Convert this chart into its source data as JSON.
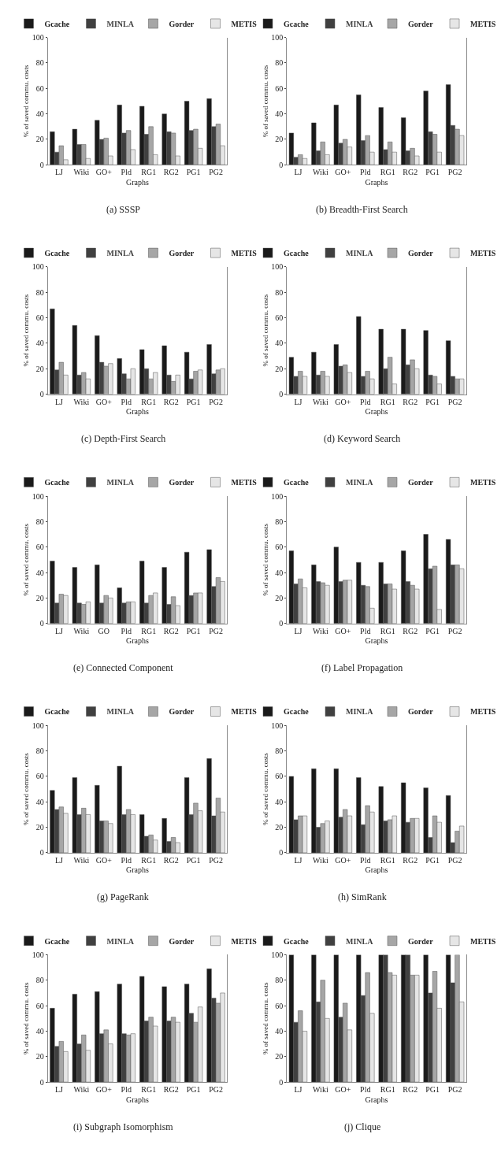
{
  "chart_data": [
    {
      "type": "bar",
      "title": "(a) SSSP",
      "xlabel": "Graphs",
      "ylabel": "% of saved commu. costs",
      "categories": [
        "LJ",
        "Wiki",
        "GO+",
        "Pld",
        "RG1",
        "RG2",
        "PG1",
        "PG2"
      ],
      "ylim": [
        0,
        100
      ],
      "yticks": [
        0,
        20,
        40,
        60,
        80,
        100
      ],
      "legend": "top",
      "series": [
        {
          "name": "Gcache",
          "color": "#1a1a1a",
          "values": [
            26,
            28,
            35,
            47,
            46,
            40,
            50,
            52
          ]
        },
        {
          "name": "MINLA",
          "color": "#404040",
          "values": [
            10,
            16,
            20,
            25,
            24,
            26,
            27,
            30
          ]
        },
        {
          "name": "Gorder",
          "color": "#a6a6a6",
          "values": [
            15,
            16,
            21,
            27,
            30,
            25,
            28,
            32
          ]
        },
        {
          "name": "METIS",
          "color": "#e6e6e6",
          "values": [
            4,
            5,
            7,
            12,
            8,
            7,
            13,
            15
          ]
        }
      ]
    },
    {
      "type": "bar",
      "title": "(b) Breadth-First Search",
      "xlabel": "Graphs",
      "ylabel": "% of saved commu. costs",
      "categories": [
        "LJ",
        "Wiki",
        "GO+",
        "Pld",
        "RG1",
        "RG2",
        "PG1",
        "PG2"
      ],
      "ylim": [
        0,
        100
      ],
      "yticks": [
        0,
        20,
        40,
        60,
        80,
        100
      ],
      "legend": "top",
      "series": [
        {
          "name": "Gcache",
          "color": "#1a1a1a",
          "values": [
            25,
            33,
            47,
            55,
            45,
            37,
            58,
            63
          ]
        },
        {
          "name": "MINLA",
          "color": "#404040",
          "values": [
            6,
            11,
            17,
            19,
            12,
            11,
            26,
            31
          ]
        },
        {
          "name": "Gorder",
          "color": "#a6a6a6",
          "values": [
            8,
            18,
            20,
            23,
            18,
            13,
            24,
            28
          ]
        },
        {
          "name": "METIS",
          "color": "#e6e6e6",
          "values": [
            5,
            8,
            14,
            10,
            10,
            7,
            10,
            23
          ]
        }
      ]
    },
    {
      "type": "bar",
      "title": "(c) Depth-First Search",
      "xlabel": "Graphs",
      "ylabel": "% of saved commu. costs",
      "categories": [
        "LJ",
        "Wiki",
        "GO+",
        "Pld",
        "RG1",
        "RG2",
        "PG1",
        "PG2"
      ],
      "ylim": [
        0,
        100
      ],
      "yticks": [
        0,
        20,
        40,
        60,
        80,
        100
      ],
      "legend": "top",
      "series": [
        {
          "name": "Gcache",
          "color": "#1a1a1a",
          "values": [
            67,
            54,
            46,
            28,
            35,
            38,
            33,
            39
          ]
        },
        {
          "name": "MINLA",
          "color": "#404040",
          "values": [
            19,
            15,
            25,
            16,
            20,
            15,
            12,
            16
          ]
        },
        {
          "name": "Gorder",
          "color": "#a6a6a6",
          "values": [
            25,
            17,
            22,
            12,
            12,
            10,
            18,
            19
          ]
        },
        {
          "name": "METIS",
          "color": "#e6e6e6",
          "values": [
            15,
            12,
            24,
            20,
            17,
            15,
            19,
            20
          ]
        }
      ]
    },
    {
      "type": "bar",
      "title": "(d) Keyword Search",
      "xlabel": "Graphs",
      "ylabel": "% of saved commu. costs",
      "categories": [
        "LJ",
        "Wiki",
        "GO+",
        "Pld",
        "RG1",
        "RG2",
        "PG1",
        "PG2"
      ],
      "ylim": [
        0,
        100
      ],
      "yticks": [
        0,
        20,
        40,
        60,
        80,
        100
      ],
      "legend": "top",
      "series": [
        {
          "name": "Gcache",
          "color": "#1a1a1a",
          "values": [
            29,
            33,
            39,
            61,
            51,
            51,
            50,
            42
          ]
        },
        {
          "name": "MINLA",
          "color": "#404040",
          "values": [
            14,
            15,
            22,
            14,
            20,
            23,
            15,
            14
          ]
        },
        {
          "name": "Gorder",
          "color": "#a6a6a6",
          "values": [
            18,
            18,
            23,
            18,
            29,
            27,
            14,
            12
          ]
        },
        {
          "name": "METIS",
          "color": "#e6e6e6",
          "values": [
            14,
            14,
            17,
            12,
            8,
            20,
            8,
            12
          ]
        }
      ]
    },
    {
      "type": "bar",
      "title": "(e) Connected Component",
      "xlabel": "Graphs",
      "ylabel": "% of saved commu. costs",
      "categories": [
        "LJ",
        "Wiki",
        "GO",
        "Pld",
        "RG1",
        "RG2",
        "PG1",
        "PG2"
      ],
      "ylim": [
        0,
        100
      ],
      "yticks": [
        0,
        20,
        40,
        60,
        80,
        100
      ],
      "legend": "top",
      "series": [
        {
          "name": "Gcache",
          "color": "#1a1a1a",
          "values": [
            49,
            44,
            46,
            28,
            49,
            44,
            56,
            58
          ]
        },
        {
          "name": "MINLA",
          "color": "#404040",
          "values": [
            16,
            16,
            16,
            16,
            16,
            15,
            22,
            29
          ]
        },
        {
          "name": "Gorder",
          "color": "#a6a6a6",
          "values": [
            23,
            15,
            22,
            17,
            22,
            21,
            24,
            36
          ]
        },
        {
          "name": "METIS",
          "color": "#e6e6e6",
          "values": [
            22,
            17,
            20,
            17,
            24,
            14,
            24,
            33
          ]
        }
      ]
    },
    {
      "type": "bar",
      "title": "(f) Label Propagation",
      "xlabel": "Graphs",
      "ylabel": "% of saved commu. costs",
      "categories": [
        "LJ",
        "Wiki",
        "GO+",
        "Pld",
        "RG1",
        "RG2",
        "PG1",
        "PG2"
      ],
      "ylim": [
        0,
        100
      ],
      "yticks": [
        0,
        20,
        40,
        60,
        80,
        100
      ],
      "legend": "top",
      "series": [
        {
          "name": "Gcache",
          "color": "#1a1a1a",
          "values": [
            57,
            46,
            60,
            48,
            48,
            57,
            70,
            66
          ]
        },
        {
          "name": "MINLA",
          "color": "#404040",
          "values": [
            31,
            33,
            33,
            30,
            31,
            33,
            43,
            46
          ]
        },
        {
          "name": "Gorder",
          "color": "#a6a6a6",
          "values": [
            35,
            32,
            34,
            29,
            31,
            30,
            45,
            46
          ]
        },
        {
          "name": "METIS",
          "color": "#e6e6e6",
          "values": [
            28,
            30,
            34,
            12,
            27,
            27,
            11,
            43
          ]
        }
      ]
    },
    {
      "type": "bar",
      "title": "(g) PageRank",
      "xlabel": "Graphs",
      "ylabel": "% of saved commu. costs",
      "categories": [
        "LJ",
        "Wiki",
        "GO+",
        "Pld",
        "RG1",
        "RG2",
        "PG1",
        "PG2"
      ],
      "ylim": [
        0,
        100
      ],
      "yticks": [
        0,
        20,
        40,
        60,
        80,
        100
      ],
      "legend": "top",
      "series": [
        {
          "name": "Gcache",
          "color": "#1a1a1a",
          "values": [
            49,
            59,
            53,
            68,
            30,
            27,
            59,
            74
          ]
        },
        {
          "name": "MINLA",
          "color": "#404040",
          "values": [
            34,
            30,
            25,
            30,
            13,
            9,
            30,
            29
          ]
        },
        {
          "name": "Gorder",
          "color": "#a6a6a6",
          "values": [
            36,
            35,
            25,
            34,
            14,
            12,
            39,
            43
          ]
        },
        {
          "name": "METIS",
          "color": "#e6e6e6",
          "values": [
            31,
            30,
            23,
            30,
            10,
            8,
            33,
            32
          ]
        }
      ]
    },
    {
      "type": "bar",
      "title": "(h) SimRank",
      "xlabel": "Graphs",
      "ylabel": "% of saved commu. costs",
      "categories": [
        "LJ",
        "Wiki",
        "GO+",
        "Pld",
        "RG1",
        "RG2",
        "PG1",
        "PG2"
      ],
      "ylim": [
        0,
        100
      ],
      "yticks": [
        0,
        20,
        40,
        60,
        80,
        100
      ],
      "legend": "top",
      "series": [
        {
          "name": "Gcache",
          "color": "#1a1a1a",
          "values": [
            60,
            66,
            66,
            59,
            52,
            55,
            51,
            45
          ]
        },
        {
          "name": "MINLA",
          "color": "#404040",
          "values": [
            26,
            20,
            28,
            22,
            25,
            24,
            12,
            8
          ]
        },
        {
          "name": "Gorder",
          "color": "#a6a6a6",
          "values": [
            29,
            23,
            34,
            37,
            26,
            27,
            29,
            17
          ]
        },
        {
          "name": "METIS",
          "color": "#e6e6e6",
          "values": [
            29,
            25,
            29,
            32,
            29,
            27,
            24,
            21
          ]
        }
      ]
    },
    {
      "type": "bar",
      "title": "(i) Subgraph Isomorphism",
      "xlabel": "Graphs",
      "ylabel": "% of saved commu. costs",
      "categories": [
        "LJ",
        "Wiki",
        "GO+",
        "Pld",
        "RG1",
        "RG2",
        "PG1",
        "PG2"
      ],
      "ylim": [
        0,
        100
      ],
      "yticks": [
        0,
        20,
        40,
        60,
        80,
        100
      ],
      "legend": "top",
      "series": [
        {
          "name": "Gcache",
          "color": "#1a1a1a",
          "values": [
            58,
            69,
            71,
            77,
            83,
            75,
            77,
            89
          ]
        },
        {
          "name": "MINLA",
          "color": "#404040",
          "values": [
            28,
            30,
            38,
            38,
            48,
            48,
            54,
            66
          ]
        },
        {
          "name": "Gorder",
          "color": "#a6a6a6",
          "values": [
            32,
            37,
            41,
            37,
            51,
            51,
            47,
            62
          ]
        },
        {
          "name": "METIS",
          "color": "#e6e6e6",
          "values": [
            24,
            25,
            30,
            38,
            44,
            47,
            59,
            70
          ]
        }
      ]
    },
    {
      "type": "bar",
      "title": "(j) Clique",
      "xlabel": "Graphs",
      "ylabel": "% of saved commu. costs",
      "categories": [
        "LJ",
        "Wiki",
        "GO+",
        "Pld",
        "RG1",
        "RG2",
        "PG1",
        "PG2"
      ],
      "ylim": [
        0,
        100
      ],
      "yticks": [
        0,
        20,
        40,
        60,
        80,
        100
      ],
      "legend": "top",
      "series": [
        {
          "name": "Gcache",
          "color": "#1a1a1a",
          "values": [
            100,
            100,
            100,
            100,
            100,
            100,
            100,
            100
          ]
        },
        {
          "name": "MINLA",
          "color": "#404040",
          "values": [
            47,
            63,
            51,
            68,
            100,
            100,
            70,
            78
          ]
        },
        {
          "name": "Gorder",
          "color": "#a6a6a6",
          "values": [
            56,
            80,
            62,
            86,
            86,
            84,
            87,
            100
          ]
        },
        {
          "name": "METIS",
          "color": "#e6e6e6",
          "values": [
            40,
            50,
            41,
            54,
            84,
            84,
            58,
            63
          ]
        }
      ]
    }
  ]
}
